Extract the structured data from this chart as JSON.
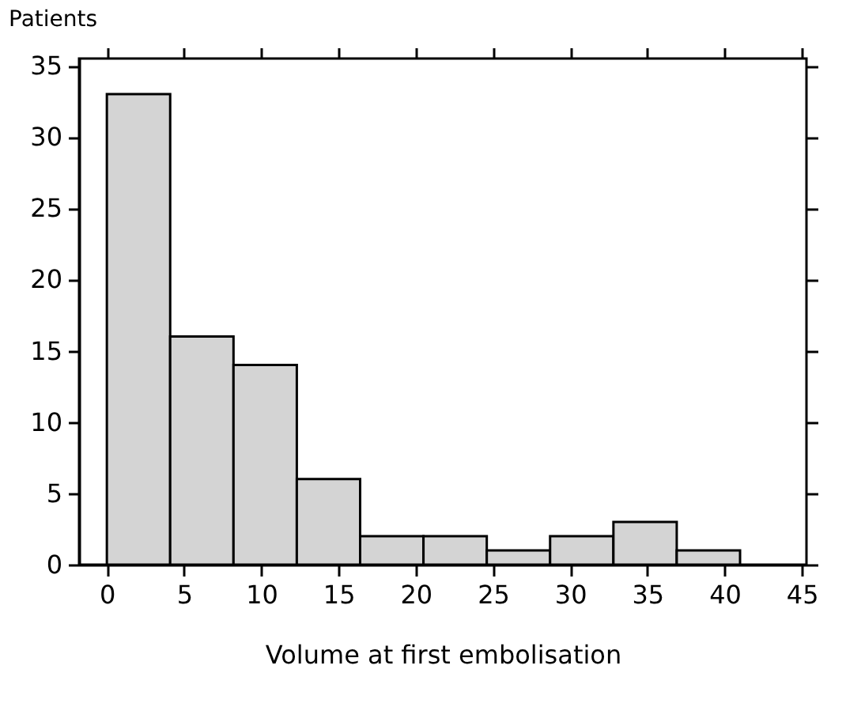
{
  "chart_data": {
    "type": "histogram",
    "xlabel": "Volume at first embolisation",
    "ylabel": "Patients",
    "bins": [
      0,
      4.1,
      8.2,
      12.3,
      16.4,
      20.5,
      24.6,
      28.7,
      32.8,
      36.9,
      41
    ],
    "values": [
      33,
      16,
      14,
      6,
      2,
      2,
      1,
      2,
      3,
      1
    ],
    "color": "#d4d4d4",
    "xlim": [
      -1.8,
      45.3
    ],
    "xticks": [
      0,
      5,
      10,
      15,
      20,
      25,
      30,
      35,
      40,
      45
    ],
    "ylim": [
      0,
      35.5
    ],
    "yticks": [
      0,
      5,
      10,
      15,
      20,
      25,
      30,
      35
    ],
    "grid": false
  }
}
